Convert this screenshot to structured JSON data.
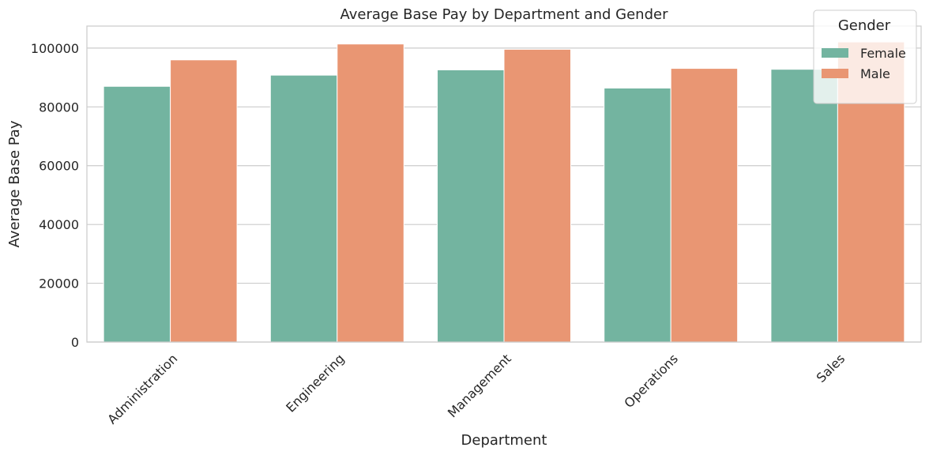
{
  "chart_data": {
    "type": "bar",
    "title": "Average Base Pay by Department and Gender",
    "xlabel": "Department",
    "ylabel": "Average Base Pay",
    "categories": [
      "Administration",
      "Engineering",
      "Management",
      "Operations",
      "Sales"
    ],
    "series": [
      {
        "name": "Female",
        "color": "#73b4a0",
        "values": [
          87000,
          90800,
          92600,
          86400,
          92800
        ]
      },
      {
        "name": "Male",
        "color": "#e99673",
        "values": [
          96000,
          101400,
          99600,
          93100,
          102100
        ]
      }
    ],
    "ylim": [
      0,
      107500
    ],
    "yticks": [
      0,
      20000,
      40000,
      60000,
      80000,
      100000
    ],
    "ytick_labels": [
      "0",
      "20000",
      "40000",
      "60000",
      "80000",
      "100000"
    ],
    "xtick_rotation": 45,
    "grid": "y",
    "legend": {
      "title": "Gender",
      "placement": "top-right"
    }
  }
}
